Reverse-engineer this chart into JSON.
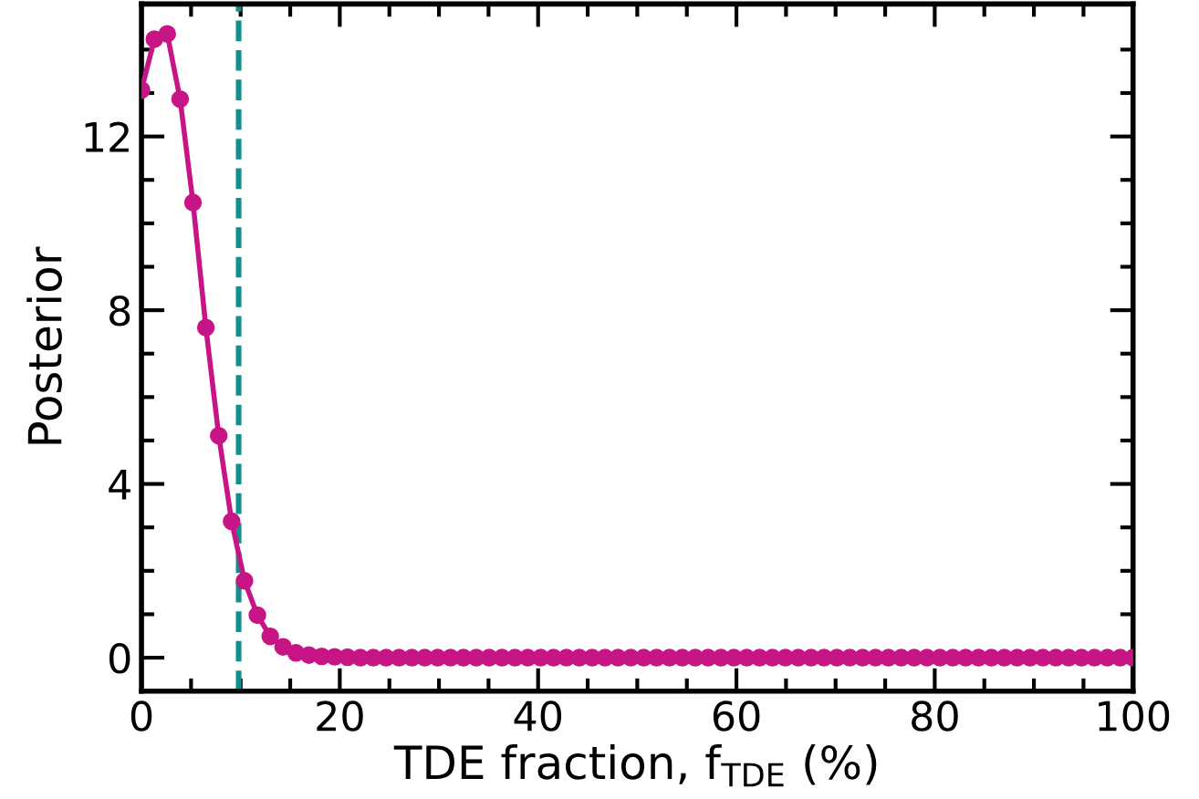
{
  "chart_data": {
    "type": "line",
    "xlabel": "TDE fraction, f$_{TDE}$ (%)",
    "ylabel": "Posterior",
    "x": [
      0,
      1.299,
      2.597,
      3.896,
      5.195,
      6.494,
      7.792,
      9.091,
      10.39,
      11.688,
      12.987,
      14.286,
      15.584,
      16.883,
      18.182,
      19.481,
      20.779,
      22.078,
      23.377,
      24.675,
      25.974,
      27.273,
      28.571,
      29.87,
      31.169,
      32.468,
      33.766,
      35.065,
      36.364,
      37.662,
      38.961,
      40.26,
      41.558,
      42.857,
      44.156,
      45.455,
      46.753,
      48.052,
      49.351,
      50.649,
      51.948,
      53.247,
      54.545,
      55.844,
      57.143,
      58.442,
      59.74,
      61.039,
      62.338,
      63.636,
      64.935,
      66.234,
      67.532,
      68.831,
      70.13,
      71.429,
      72.727,
      74.026,
      75.325,
      76.623,
      77.922,
      79.221,
      80.519,
      81.818,
      83.117,
      84.416,
      85.714,
      87.013,
      88.312,
      89.61,
      90.909,
      92.208,
      93.506,
      94.805,
      96.104,
      97.403,
      98.701,
      100
    ],
    "series": [
      {
        "color": "#c71585",
        "marker": "circle",
        "line_style": "solid",
        "values": [
          13.07,
          14.24,
          14.36,
          12.86,
          10.48,
          7.6,
          5.11,
          3.14,
          1.77,
          0.98,
          0.49,
          0.25,
          0.11,
          0.06,
          0.03,
          0.02,
          0.01,
          0,
          0,
          0,
          0,
          0,
          0,
          0,
          0,
          0,
          0,
          0,
          0,
          0,
          0,
          0,
          0,
          0,
          0,
          0,
          0,
          0,
          0,
          0,
          0,
          0,
          0,
          0,
          0,
          0,
          0,
          0,
          0,
          0,
          0,
          0,
          0,
          0,
          0,
          0,
          0,
          0,
          0,
          0,
          0,
          0,
          0,
          0,
          0,
          0,
          0,
          0,
          0,
          0,
          0,
          0,
          0,
          0,
          0,
          0,
          0,
          0
        ]
      }
    ],
    "xlim": [
      0,
      100
    ],
    "xticks": [
      0,
      {
        "value": 5,
        "label": null
      },
      {
        "value": 10,
        "label": null
      },
      {
        "value": 15,
        "label": null
      },
      20,
      {
        "value": 25,
        "label": null
      },
      {
        "value": 30,
        "label": null
      },
      {
        "value": 35,
        "label": null
      },
      40,
      {
        "value": 45,
        "label": null
      },
      {
        "value": 50,
        "label": null
      },
      {
        "value": 55,
        "label": null
      },
      60,
      {
        "value": 65,
        "label": null
      },
      {
        "value": 70,
        "label": null
      },
      {
        "value": 75,
        "label": null
      },
      80,
      {
        "value": 85,
        "label": null
      },
      {
        "value": 90,
        "label": null
      },
      {
        "value": 95,
        "label": null
      },
      100
    ],
    "ylim": [
      -0.77,
      15.05
    ],
    "yticks": [
      0,
      {
        "value": 1,
        "label": null
      },
      {
        "value": 2,
        "label": null
      },
      {
        "value": 3,
        "label": null
      },
      4,
      {
        "value": 5,
        "label": null
      },
      {
        "value": 6,
        "label": null
      },
      {
        "value": 7,
        "label": null
      },
      8,
      {
        "value": 9,
        "label": null
      },
      {
        "value": 10,
        "label": null
      },
      {
        "value": 11,
        "label": null
      },
      12,
      {
        "value": 13,
        "label": null
      },
      {
        "value": 14,
        "label": null
      }
    ],
    "ref_lines": [
      {
        "axis": "x",
        "value": 9.8,
        "color": "#12908e",
        "line_style": "dashed"
      }
    ],
    "grid": false,
    "legend": false
  }
}
